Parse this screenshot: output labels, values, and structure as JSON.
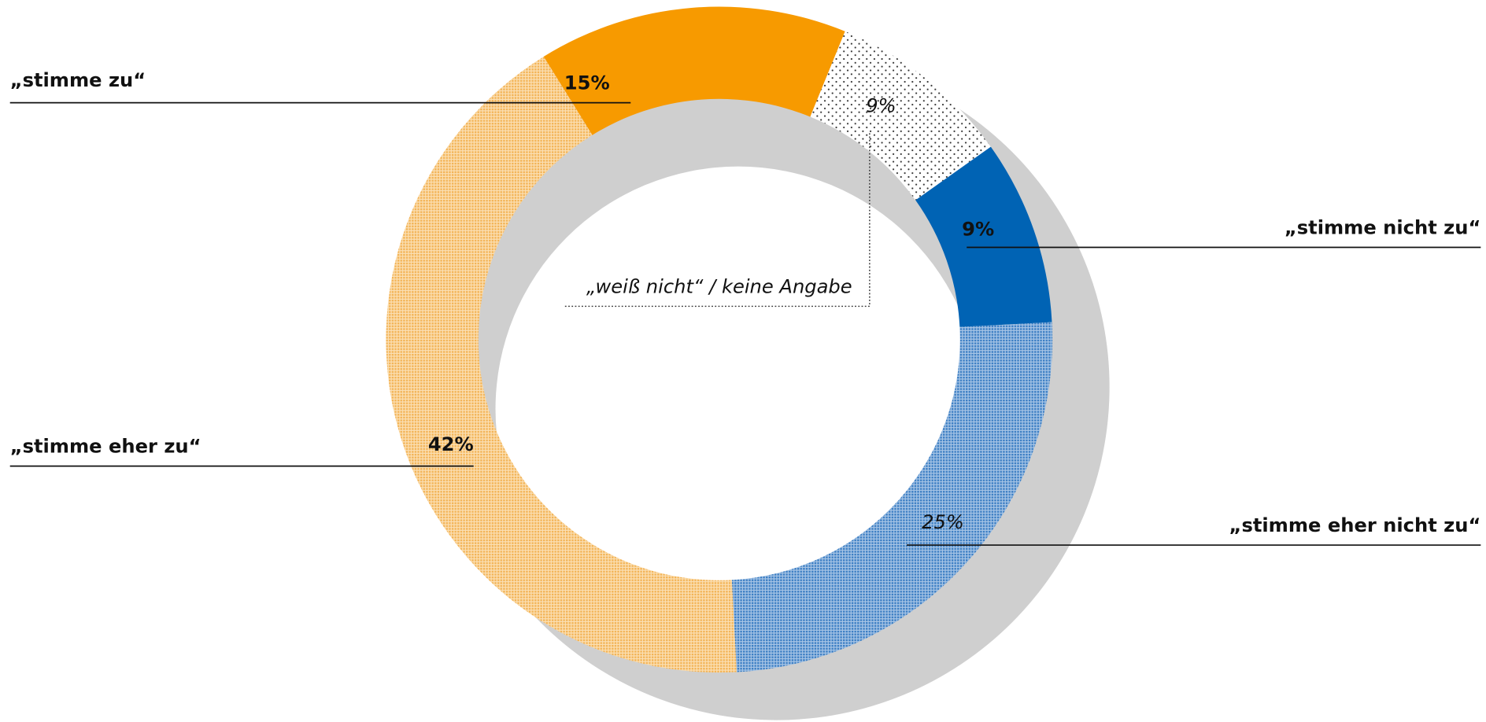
{
  "chart_data": {
    "type": "pie",
    "categories": [
      "„stimme zu“",
      "„weiß nicht“ / keine Angabe",
      "„stimme nicht zu“",
      "„stimme eher nicht zu“",
      "„stimme eher zu“"
    ],
    "values": [
      15,
      9,
      9,
      25,
      42
    ],
    "value_labels": [
      "15%",
      "9%",
      "9%",
      "25%",
      "42%"
    ],
    "colors": [
      "#f79a00",
      "#ffffff",
      "#0063b4",
      "#6f9fd3",
      "#f6c274"
    ]
  }
}
